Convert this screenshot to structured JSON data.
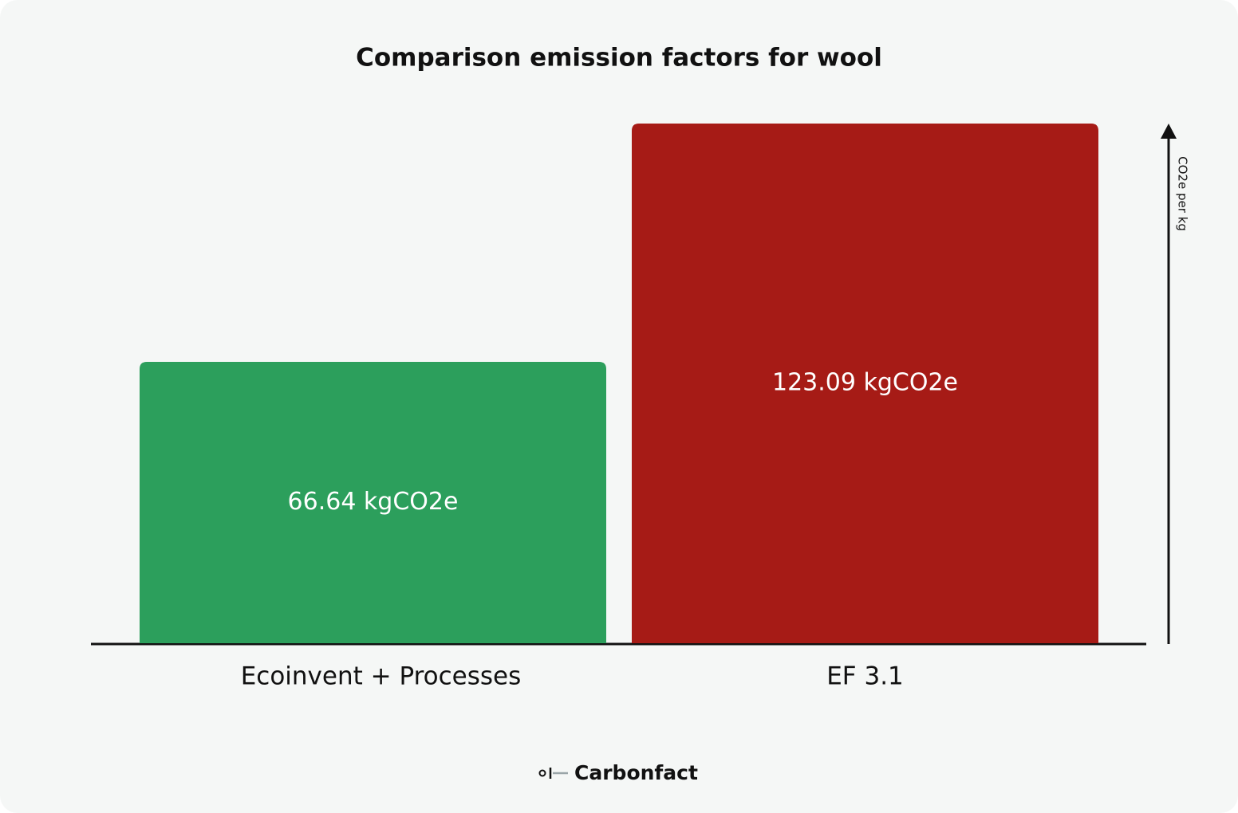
{
  "chart_data": {
    "type": "bar",
    "title": "Comparison emission factors for wool",
    "categories": [
      "Ecoinvent + Processes",
      "EF 3.1"
    ],
    "values": [
      66.64,
      123.09
    ],
    "value_labels": [
      "66.64 kgCO2e",
      "123.09 kgCO2e"
    ],
    "colors": [
      "#2c9f5c",
      "#a61b16"
    ],
    "y_axis_label": "CO2e per kg",
    "ylim": [
      0,
      123.09
    ],
    "source": "Carbonfact"
  }
}
